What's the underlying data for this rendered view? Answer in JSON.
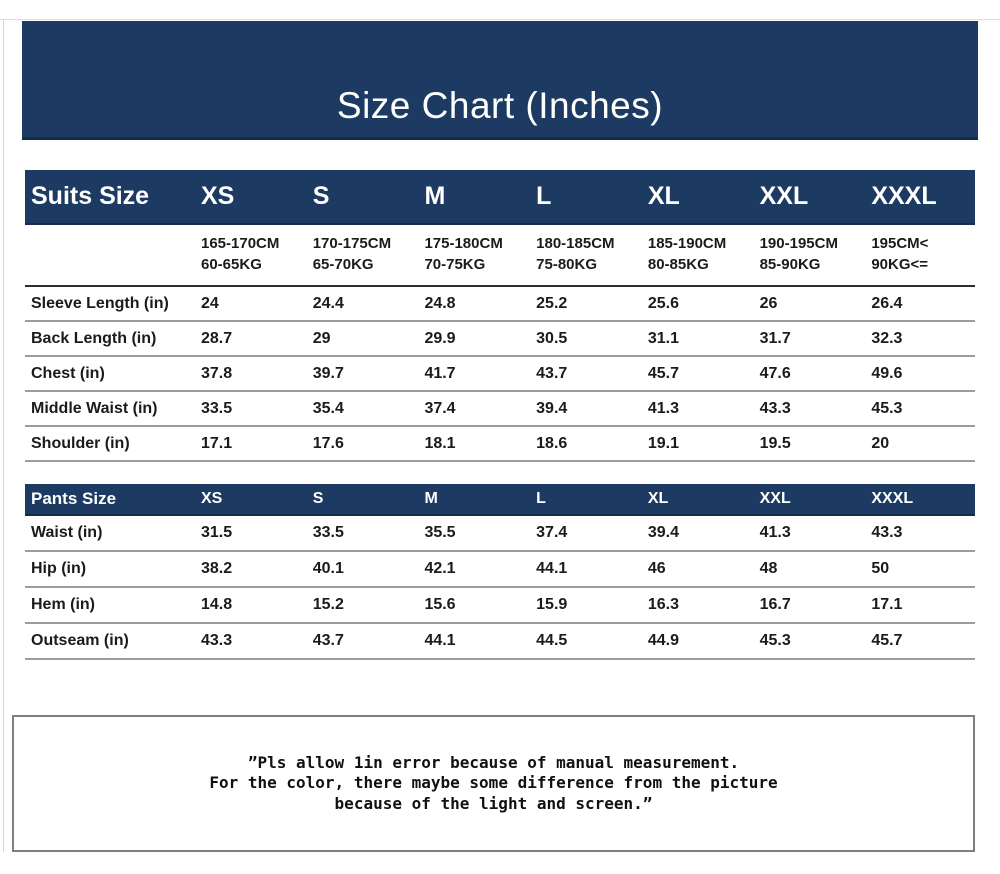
{
  "page": {
    "title": "Size Chart (Inches)"
  },
  "colors": {
    "navy": "#1d3b62",
    "navy_edge": "#152b4c",
    "separator_gray": "#9b9b9b",
    "note_border": "#7f7f7f"
  },
  "suits_table": {
    "header_label": "Suits Size",
    "sizes": [
      "XS",
      "S",
      "M",
      "L",
      "XL",
      "XXL",
      "XXXL"
    ],
    "height_weight": [
      {
        "height": "165-170CM",
        "weight": "60-65KG"
      },
      {
        "height": "170-175CM",
        "weight": "65-70KG"
      },
      {
        "height": "175-180CM",
        "weight": "70-75KG"
      },
      {
        "height": "180-185CM",
        "weight": "75-80KG"
      },
      {
        "height": "185-190CM",
        "weight": "80-85KG"
      },
      {
        "height": "190-195CM",
        "weight": "85-90KG"
      },
      {
        "height": "195CM<",
        "weight": "90KG<="
      }
    ],
    "rows": [
      {
        "label": "Sleeve Length (in)",
        "values": [
          "24",
          "24.4",
          "24.8",
          "25.2",
          "25.6",
          "26",
          "26.4"
        ]
      },
      {
        "label": "Back Length (in)",
        "values": [
          "28.7",
          "29",
          "29.9",
          "30.5",
          "31.1",
          "31.7",
          "32.3"
        ]
      },
      {
        "label": "Chest (in)",
        "values": [
          "37.8",
          "39.7",
          "41.7",
          "43.7",
          "45.7",
          "47.6",
          "49.6"
        ]
      },
      {
        "label": "Middle Waist (in)",
        "values": [
          "33.5",
          "35.4",
          "37.4",
          "39.4",
          "41.3",
          "43.3",
          "45.3"
        ]
      },
      {
        "label": "Shoulder (in)",
        "values": [
          "17.1",
          "17.6",
          "18.1",
          "18.6",
          "19.1",
          "19.5",
          "20"
        ]
      }
    ]
  },
  "pants_table": {
    "header_label": "Pants Size",
    "sizes": [
      "XS",
      "S",
      "M",
      "L",
      "XL",
      "XXL",
      "XXXL"
    ],
    "rows": [
      {
        "label": "Waist (in)",
        "values": [
          "31.5",
          "33.5",
          "35.5",
          "37.4",
          "39.4",
          "41.3",
          "43.3"
        ]
      },
      {
        "label": "Hip (in)",
        "values": [
          "38.2",
          "40.1",
          "42.1",
          "44.1",
          "46",
          "48",
          "50"
        ]
      },
      {
        "label": "Hem (in)",
        "values": [
          "14.8",
          "15.2",
          "15.6",
          "15.9",
          "16.3",
          "16.7",
          "17.1"
        ]
      },
      {
        "label": "Outseam (in)",
        "values": [
          "43.3",
          "43.7",
          "44.1",
          "44.5",
          "44.9",
          "45.3",
          "45.7"
        ]
      }
    ]
  },
  "note": {
    "line1": "”Pls allow 1in error because of manual measurement.",
    "line2": "For the color, there maybe some difference from the picture",
    "line3": "because of the light and screen.”"
  }
}
